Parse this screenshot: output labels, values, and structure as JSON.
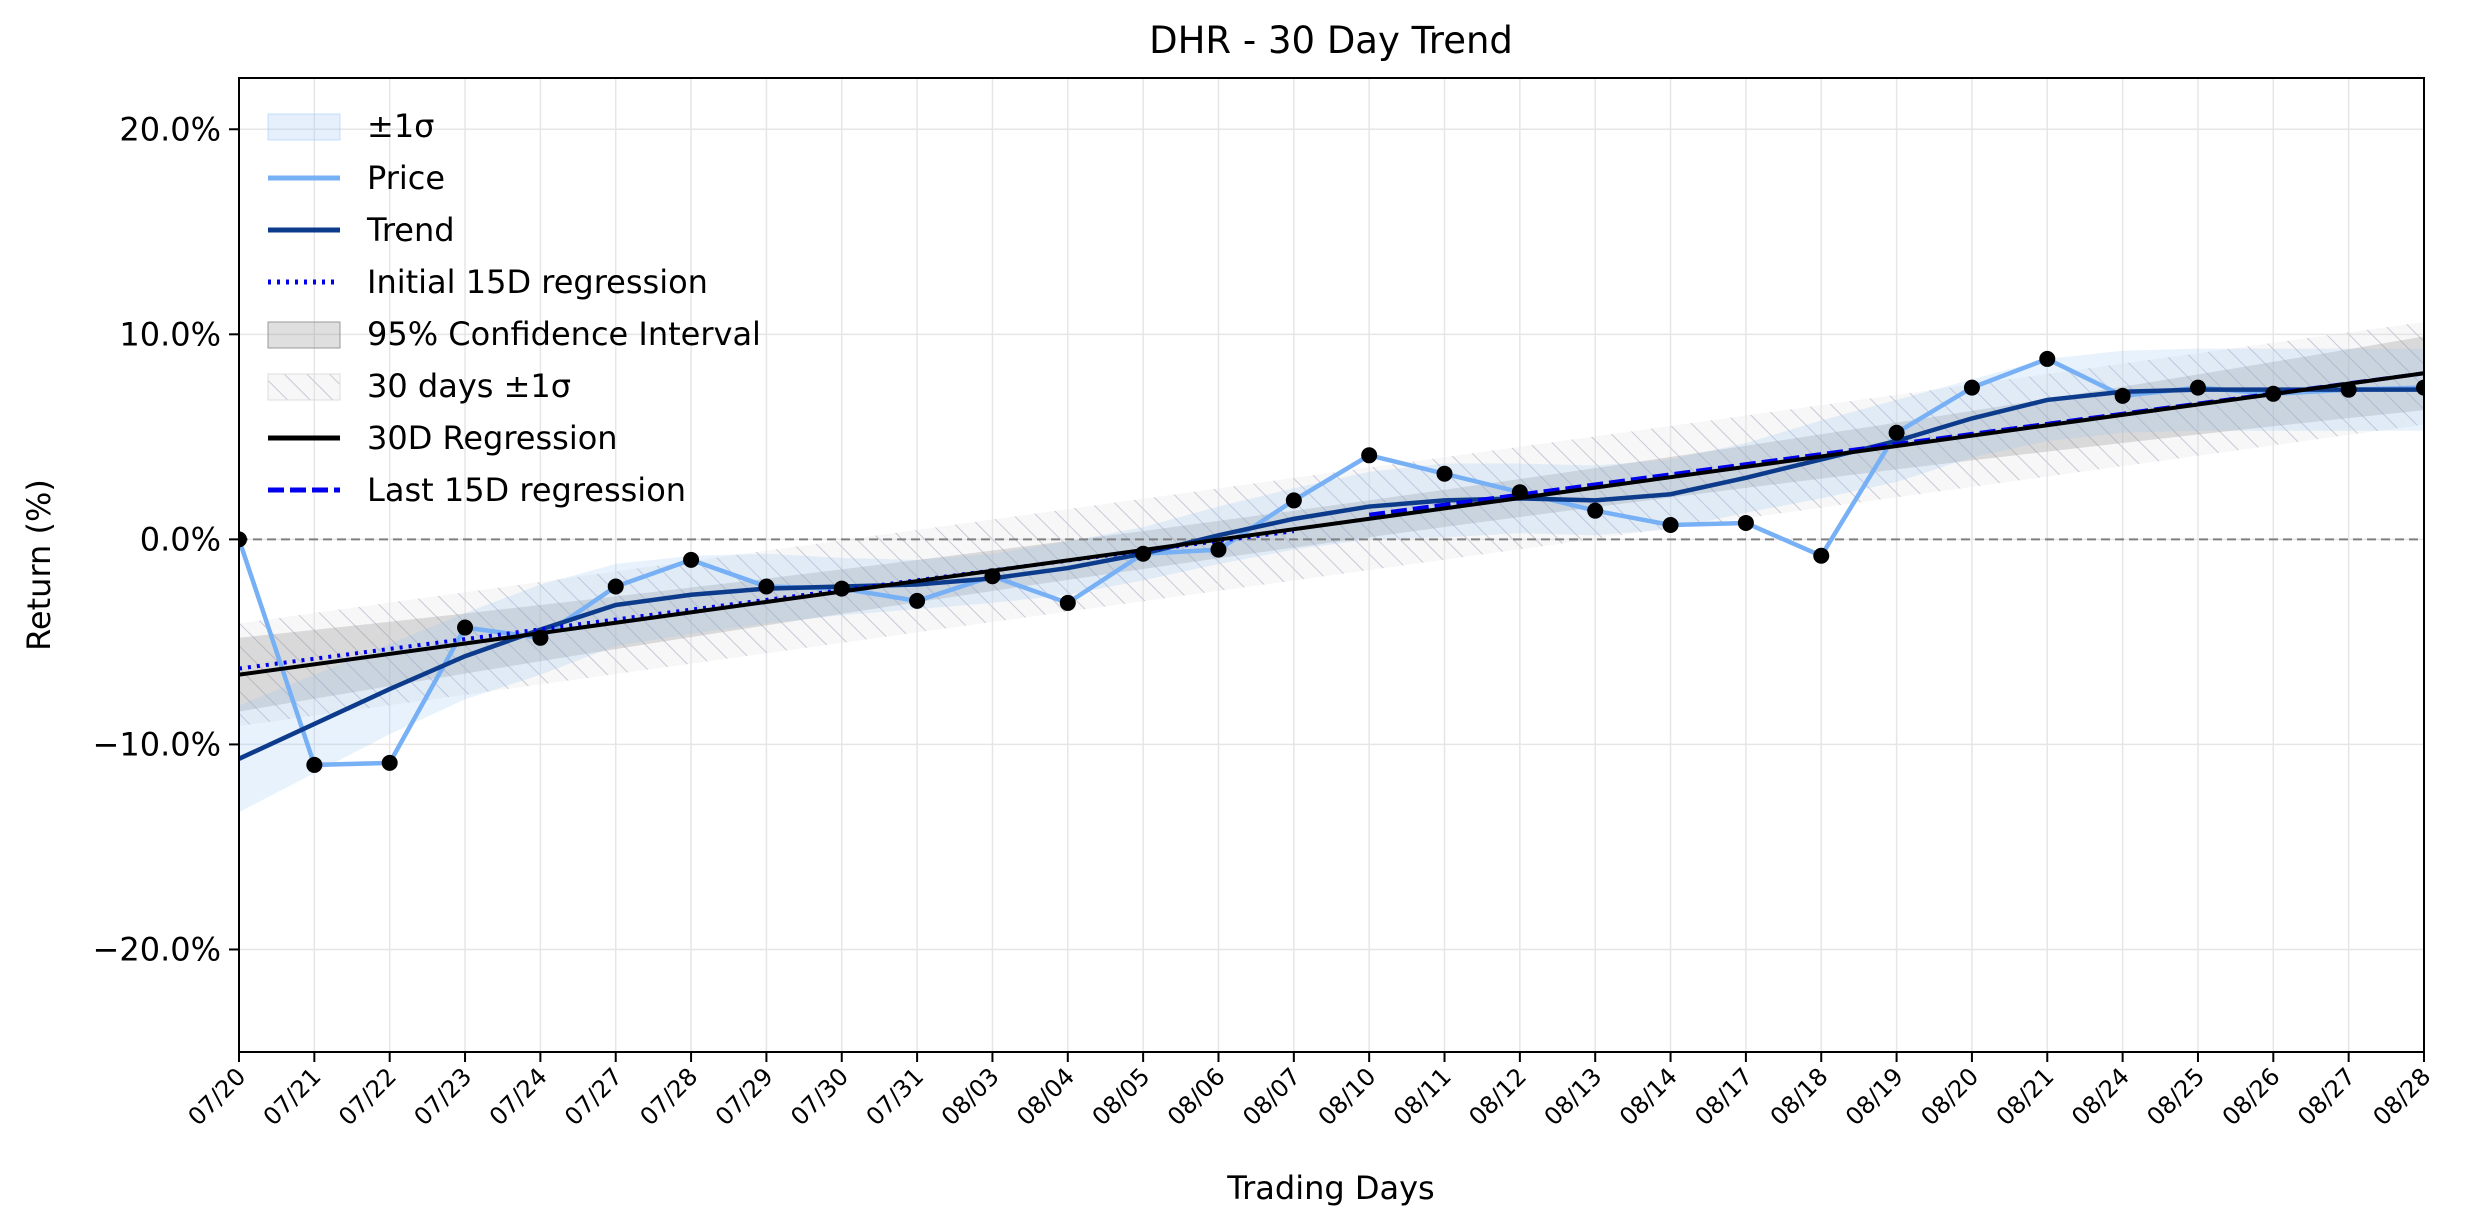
{
  "chart_data": {
    "type": "line",
    "title": "DHR - 30 Day Trend",
    "xlabel": "Trading Days",
    "ylabel": "Return (%)",
    "categories": [
      "07/20",
      "07/21",
      "07/22",
      "07/23",
      "07/24",
      "07/27",
      "07/28",
      "07/29",
      "07/30",
      "07/31",
      "08/03",
      "08/04",
      "08/05",
      "08/06",
      "08/07",
      "08/10",
      "08/11",
      "08/12",
      "08/13",
      "08/14",
      "08/17",
      "08/18",
      "08/19",
      "08/20",
      "08/21",
      "08/24",
      "08/25",
      "08/26",
      "08/27",
      "08/28"
    ],
    "ylim": [
      -25,
      22.5
    ],
    "yticks": [
      20,
      10,
      0,
      -10,
      -20
    ],
    "ytick_labels": [
      "20.0%",
      "10.0%",
      "0.0%",
      "−10.0%",
      "−20.0%"
    ],
    "grid": true,
    "legend_position": "upper-left",
    "legend": [
      "±1σ",
      "Price",
      "Trend",
      "Initial 15D regression",
      "95% Confidence Interval",
      "30 days ±1σ",
      "30D Regression",
      "Last 15D regression"
    ],
    "series": [
      {
        "name": "Price",
        "color": "#77b0f5",
        "values": [
          0.0,
          -11.0,
          -10.9,
          -4.3,
          -4.8,
          -2.3,
          -1.0,
          -2.3,
          -2.4,
          -3.0,
          -1.8,
          -3.1,
          -0.7,
          -0.5,
          1.9,
          4.1,
          3.2,
          2.3,
          1.4,
          0.7,
          0.8,
          -0.8,
          5.2,
          7.4,
          8.8,
          7.0,
          7.4,
          7.1,
          7.3,
          7.4
        ]
      },
      {
        "name": "Trend",
        "color": "#0d3b8c",
        "values": [
          -10.7,
          -9.0,
          -7.3,
          -5.7,
          -4.4,
          -3.2,
          -2.7,
          -2.4,
          -2.3,
          -2.2,
          -1.9,
          -1.4,
          -0.7,
          0.2,
          1.0,
          1.6,
          1.9,
          2.0,
          1.9,
          2.2,
          3.0,
          3.9,
          4.8,
          5.9,
          6.8,
          7.2,
          7.3,
          7.3,
          7.3,
          7.3
        ]
      },
      {
        "name": "±1σ",
        "color": "#cfe3fb",
        "upper": [
          -8.1,
          -6.6,
          -5.1,
          -3.6,
          -2.2,
          -1.2,
          -0.8,
          -0.7,
          -0.9,
          -1.0,
          -0.7,
          -0.1,
          0.6,
          1.6,
          2.5,
          3.3,
          3.7,
          3.7,
          3.6,
          3.9,
          4.7,
          5.8,
          6.8,
          7.8,
          8.8,
          9.2,
          9.3,
          9.3,
          9.3,
          9.3
        ],
        "lower": [
          -13.3,
          -11.4,
          -9.5,
          -7.8,
          -6.6,
          -5.2,
          -4.6,
          -4.1,
          -3.7,
          -3.4,
          -3.1,
          -2.7,
          -2.0,
          -1.2,
          -0.5,
          0.0,
          0.1,
          0.3,
          0.2,
          0.5,
          1.3,
          2.0,
          2.8,
          4.0,
          4.8,
          5.2,
          5.3,
          5.3,
          5.3,
          5.3
        ]
      },
      {
        "name": "Initial 15D regression",
        "color": "#0000ee",
        "x": [
          "07/20",
          "08/07"
        ],
        "values": [
          -6.3,
          0.4
        ]
      },
      {
        "name": "95% Confidence Interval",
        "color": "#b8b8b8",
        "center_start": -6.6,
        "center_end": 8.1,
        "halfwidth_ends": 1.8,
        "halfwidth_mid": 0.9
      },
      {
        "name": "30 days ±1σ",
        "color": "#d9d9d9",
        "halfwidth": 2.5
      },
      {
        "name": "30D Regression",
        "color": "#000000",
        "x": [
          "07/20",
          "08/28"
        ],
        "values": [
          -6.6,
          8.1
        ]
      },
      {
        "name": "Last 15D regression",
        "color": "#0000ee",
        "x": [
          "08/10",
          "08/28"
        ],
        "values": [
          1.2,
          8.1
        ]
      }
    ],
    "zero_line": 0
  }
}
